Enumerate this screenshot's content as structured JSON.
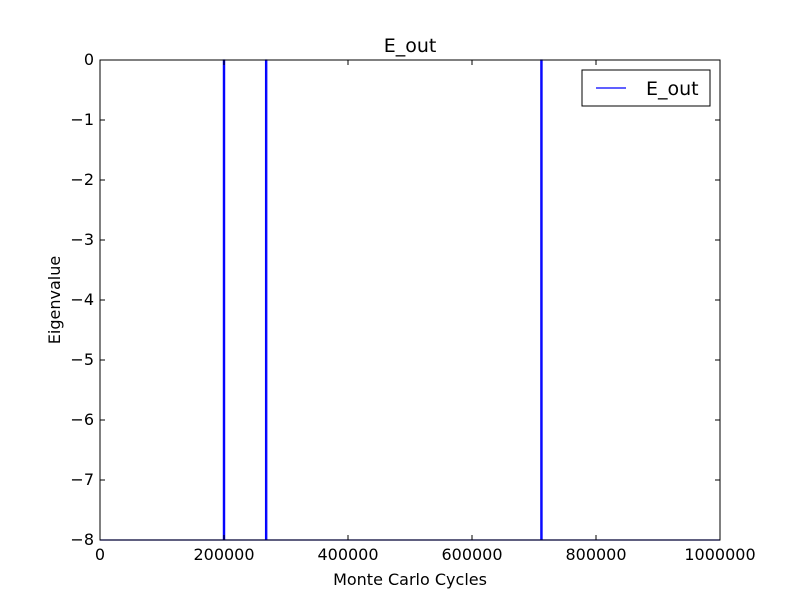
{
  "chart_data": {
    "type": "line",
    "title": "E_out",
    "xlabel": "Monte Carlo Cycles",
    "ylabel": "Eigenvalue",
    "xlim": [
      0,
      1000000
    ],
    "ylim": [
      -8,
      0
    ],
    "x_ticks": [
      0,
      200000,
      400000,
      600000,
      800000,
      1000000
    ],
    "x_tick_labels": [
      "0",
      "200000",
      "400000",
      "600000",
      "800000",
      "1000000"
    ],
    "y_ticks": [
      0,
      -1,
      -2,
      -3,
      -4,
      -5,
      -6,
      -7,
      -8
    ],
    "y_tick_labels": [
      "0",
      "−1",
      "−2",
      "−3",
      "−4",
      "−5",
      "−6",
      "−7",
      "−8"
    ],
    "grid": false,
    "legend_position": "top-right",
    "series": [
      {
        "name": "E_out",
        "color": "#0000ff",
        "x": [
          0,
          199000,
          199000,
          201000,
          201000,
          267000,
          267000,
          269000,
          269000,
          711000,
          711000,
          713000,
          713000,
          1000000
        ],
        "y": [
          -8,
          -8,
          0,
          0,
          -8,
          -8,
          0,
          0,
          -8,
          -8,
          0,
          0,
          -8,
          -8
        ]
      }
    ]
  }
}
